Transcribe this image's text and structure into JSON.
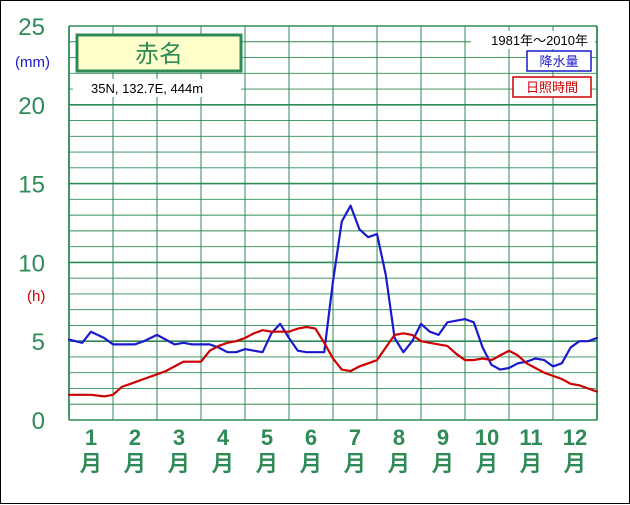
{
  "chart_data": {
    "type": "line",
    "station": "赤名",
    "location": "35N,  132.7E,  444m",
    "period": "1981年〜2010年",
    "units": {
      "left": "(mm)",
      "right": "(h)"
    },
    "yticks": [
      "0",
      "5",
      "10",
      "15",
      "20",
      "25"
    ],
    "ylim": [
      0,
      25
    ],
    "months": [
      {
        "num": "1",
        "kanji": "月"
      },
      {
        "num": "2",
        "kanji": "月"
      },
      {
        "num": "3",
        "kanji": "月"
      },
      {
        "num": "4",
        "kanji": "月"
      },
      {
        "num": "5",
        "kanji": "月"
      },
      {
        "num": "6",
        "kanji": "月"
      },
      {
        "num": "7",
        "kanji": "月"
      },
      {
        "num": "8",
        "kanji": "月"
      },
      {
        "num": "9",
        "kanji": "月"
      },
      {
        "num": "10",
        "kanji": "月"
      },
      {
        "num": "11",
        "kanji": "月"
      },
      {
        "num": "12",
        "kanji": "月"
      }
    ],
    "x": [
      0.0,
      0.3,
      0.5,
      0.8,
      1.0,
      1.2,
      1.5,
      1.7,
      2.0,
      2.2,
      2.4,
      2.6,
      2.8,
      3.0,
      3.2,
      3.4,
      3.6,
      3.8,
      4.0,
      4.2,
      4.4,
      4.6,
      4.8,
      5.0,
      5.2,
      5.4,
      5.6,
      5.8,
      6.0,
      6.2,
      6.4,
      6.6,
      6.8,
      7.0,
      7.2,
      7.4,
      7.6,
      7.8,
      8.0,
      8.2,
      8.4,
      8.6,
      8.8,
      9.0,
      9.2,
      9.4,
      9.6,
      9.8,
      10.0,
      10.2,
      10.4,
      10.6,
      10.8,
      11.0,
      11.2,
      11.4,
      11.6,
      11.8,
      12.0
    ],
    "series": [
      {
        "name": "降水量",
        "color": "#1a1acc",
        "values": [
          5.1,
          4.9,
          5.6,
          5.2,
          4.8,
          4.8,
          4.8,
          5.0,
          5.4,
          5.1,
          4.8,
          4.9,
          4.8,
          4.8,
          4.8,
          4.6,
          4.3,
          4.3,
          4.5,
          4.4,
          4.3,
          5.5,
          6.1,
          5.2,
          4.4,
          4.3,
          4.3,
          4.3,
          8.8,
          12.6,
          13.6,
          12.1,
          11.6,
          11.8,
          9.2,
          5.2,
          4.3,
          5.0,
          6.1,
          5.6,
          5.4,
          6.2,
          6.3,
          6.4,
          6.2,
          4.6,
          3.5,
          3.2,
          3.3,
          3.6,
          3.7,
          3.9,
          3.8,
          3.4,
          3.6,
          4.6,
          5.0,
          5.0,
          5.2
        ]
      },
      {
        "name": "日照時間",
        "color": "#cc0000",
        "values": [
          1.6,
          1.6,
          1.6,
          1.5,
          1.6,
          2.1,
          2.4,
          2.6,
          2.9,
          3.1,
          3.4,
          3.7,
          3.7,
          3.7,
          4.4,
          4.7,
          4.9,
          5.0,
          5.2,
          5.5,
          5.7,
          5.6,
          5.6,
          5.6,
          5.8,
          5.9,
          5.8,
          4.9,
          3.9,
          3.2,
          3.1,
          3.4,
          3.6,
          3.8,
          4.6,
          5.4,
          5.5,
          5.4,
          5.0,
          4.9,
          4.8,
          4.7,
          4.2,
          3.8,
          3.8,
          3.9,
          3.8,
          4.1,
          4.4,
          4.1,
          3.6,
          3.3,
          3.0,
          2.8,
          2.6,
          2.3,
          2.2,
          2.0,
          1.8
        ]
      }
    ],
    "grid": true
  }
}
